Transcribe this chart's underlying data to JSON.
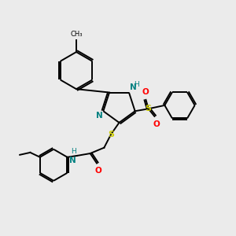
{
  "background_color": "#ebebeb",
  "bond_color": "#000000",
  "atom_colors": {
    "N": "#008080",
    "S": "#cccc00",
    "O": "#ff0000",
    "H": "#008080",
    "C": "#000000"
  }
}
